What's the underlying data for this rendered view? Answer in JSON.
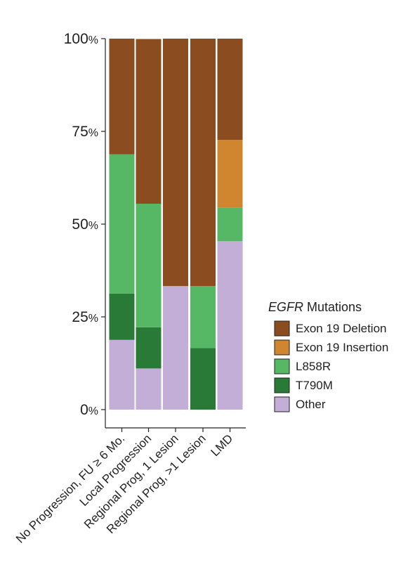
{
  "chart_data": {
    "type": "bar",
    "stacked": true,
    "categories": [
      "No Progression, FU ≥ 6 Mo.",
      "Local Progression",
      "Regional Prog, 1 Lesion",
      "Regional Prog, >1 Lesion",
      "LMD"
    ],
    "y_ticks": [
      {
        "value": 0,
        "num": "0",
        "suffix": "%"
      },
      {
        "value": 25,
        "num": "25",
        "suffix": "%"
      },
      {
        "value": 50,
        "num": "50",
        "suffix": "%"
      },
      {
        "value": 75,
        "num": "75",
        "suffix": "%"
      },
      {
        "value": 100,
        "num": "100",
        "suffix": "%"
      }
    ],
    "ylim": [
      0,
      100
    ],
    "stack_order_bottom_to_top": [
      "Other",
      "T790M",
      "L858R",
      "Exon 19 Insertion",
      "Exon 19 Deletion"
    ],
    "series": [
      {
        "name": "Exon 19 Deletion",
        "color": "#8B4C1F",
        "values": [
          31.2,
          44.4,
          66.7,
          66.7,
          27.3
        ]
      },
      {
        "name": "Exon 19 Insertion",
        "color": "#CF862F",
        "values": [
          0,
          0,
          0,
          0,
          18.2
        ]
      },
      {
        "name": "L858R",
        "color": "#56B764",
        "values": [
          37.5,
          33.3,
          0,
          16.7,
          9.1
        ]
      },
      {
        "name": "T790M",
        "color": "#2A7A37",
        "values": [
          12.5,
          11.1,
          0,
          16.6,
          0
        ]
      },
      {
        "name": "Other",
        "color": "#C2AED7",
        "values": [
          18.8,
          11.1,
          33.3,
          0,
          45.4
        ]
      }
    ],
    "legend": {
      "title_italic": "EGFR",
      "title_rest": " Mutations",
      "placement": "right",
      "entries": [
        "Exon 19 Deletion",
        "Exon 19 Insertion",
        "L858R",
        "T790M",
        "Other"
      ]
    },
    "xlabel": "",
    "ylabel": "",
    "grid": false
  }
}
